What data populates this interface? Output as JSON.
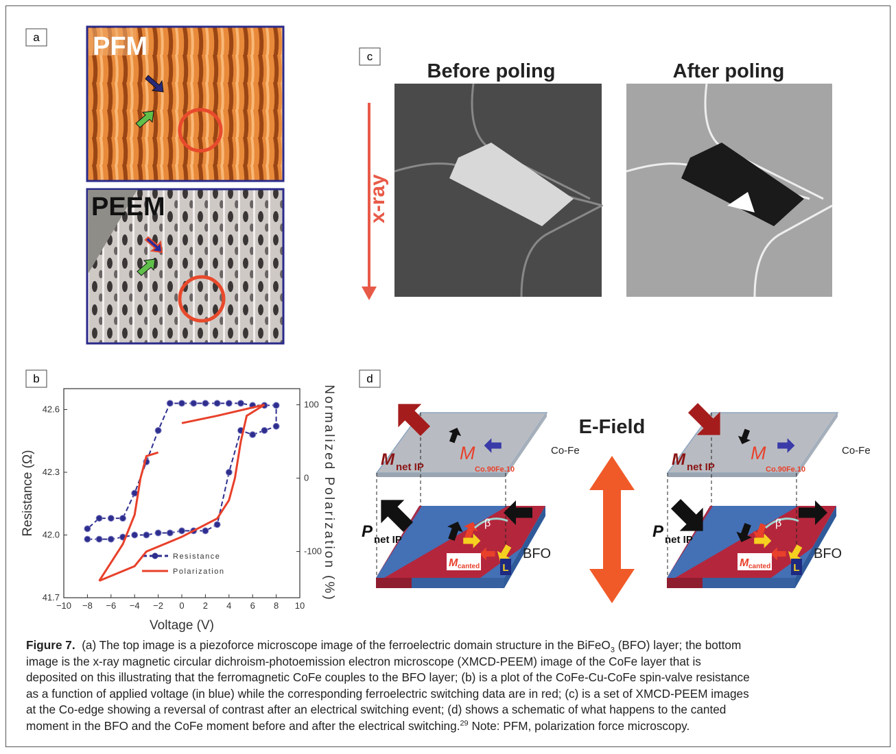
{
  "panel_a": {
    "label": "a",
    "top_title": "PFM",
    "bottom_title": "PEEM"
  },
  "panel_b": {
    "label": "b"
  },
  "panel_c": {
    "label": "c",
    "before": "Before poling",
    "after": "After poling",
    "xray": "x-ray"
  },
  "panel_d": {
    "label": "d",
    "e_field": "E-Field",
    "left": {
      "m": "M",
      "m_sub": "net IP",
      "m2": "M",
      "m2_sub": "Co.90Fe.10",
      "cofe": "Co-Fe",
      "p": "P",
      "p_sub": "net IP",
      "beta": "β",
      "mc": "M",
      "mc_sub": "canted",
      "l": "L",
      "bfo": "BFO"
    },
    "right": {
      "m": "M",
      "m_sub": "net IP",
      "m2": "M",
      "m2_sub": "Co.90Fe.10",
      "cofe": "Co-Fe",
      "p": "P",
      "p_sub": "net IP",
      "beta": "β",
      "mc": "M",
      "mc_sub": "canted",
      "l": "L",
      "bfo": "BFO"
    }
  },
  "chart_data": {
    "type": "line",
    "x_label": "Voltage (V)",
    "y_label": "Resistance (Ω)",
    "y2_label": "Normalized Polarization (%)",
    "xlim": [
      -10,
      10
    ],
    "xticks": [
      {
        "value": -10,
        "label": "−10"
      },
      {
        "value": -8,
        "label": "−8"
      },
      {
        "value": -6,
        "label": "−6"
      },
      {
        "value": -4,
        "label": "−4"
      },
      {
        "value": -2,
        "label": "−2"
      },
      0,
      2,
      4,
      6,
      8,
      10
    ],
    "ylim": [
      41.7,
      42.7
    ],
    "yticks": [
      41.7,
      {
        "value": 42.0,
        "label": "42.0"
      },
      42.3,
      42.6
    ],
    "y2lim": [
      -163,
      122
    ],
    "y2ticks": [
      -100,
      0,
      100
    ],
    "series": [
      {
        "name": "Resistance",
        "color": "#2e2e8f",
        "marker": "circle",
        "x": [
          -8,
          -7,
          -6,
          -5,
          -4,
          -3,
          -2,
          -1,
          0,
          1,
          2,
          3,
          4,
          5,
          6,
          7,
          8,
          8,
          7,
          6,
          5,
          4,
          3,
          2,
          1,
          0,
          -1,
          -2,
          -3,
          -4,
          -5,
          -6,
          -7,
          -8
        ],
        "values": [
          41.98,
          41.98,
          41.98,
          41.99,
          42.0,
          42.0,
          42.01,
          42.01,
          42.02,
          42.02,
          42.02,
          42.05,
          42.3,
          42.5,
          42.48,
          42.5,
          42.52,
          42.62,
          42.62,
          42.62,
          42.63,
          42.63,
          42.63,
          42.63,
          42.63,
          42.63,
          42.63,
          42.5,
          42.35,
          42.2,
          42.08,
          42.08,
          42.08,
          42.03
        ]
      },
      {
        "name": "Polarization",
        "color": "#e8402a",
        "axis": "y2",
        "x": [
          -7,
          -4,
          -3,
          0,
          3,
          4,
          4.5,
          5,
          5.5,
          7,
          3,
          0,
          null,
          -2,
          -3,
          -3.5,
          -4,
          -5,
          -7
        ],
        "values": [
          -140,
          -120,
          -100,
          -80,
          -55,
          -30,
          0,
          50,
          85,
          100,
          85,
          75,
          null,
          35,
          30,
          0,
          -50,
          -90,
          -140
        ]
      }
    ],
    "legend": "bottom"
  },
  "caption": {
    "label": "Figure 7.",
    "lines": [
      [
        "(a) The top image is a piezoforce microscope image of the ferroelectric domain structure in the BiFeO",
        "3",
        " (BFO) layer; the bottom"
      ],
      [
        "image is the x-ray magnetic circular dichroism-photoemission electron microscope (XMCD-PEEM) image of the CoFe layer that is"
      ],
      [
        "deposited on this illustrating that the ferromagnetic CoFe couples to the BFO layer; (b) is a plot of the CoFe-Cu-CoFe spin-valve resistance"
      ],
      [
        "as a function of applied voltage (in blue) while the corresponding ferroelectric switching data are in red; (c) is a set of XMCD-PEEM images"
      ],
      [
        "at the Co-edge showing a reversal of contrast after an electrical switching event; (d) shows a schematic of what happens to the canted"
      ],
      [
        "moment in the BFO and the CoFe moment before and after the electrical switching.",
        "29",
        " Note: PFM, polarization force microscopy."
      ]
    ]
  }
}
